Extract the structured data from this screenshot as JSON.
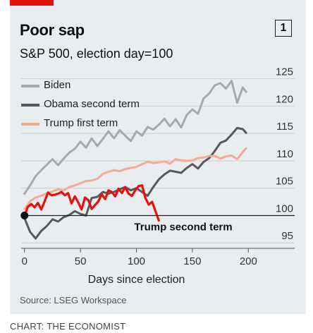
{
  "header": {
    "title": "Poor sap",
    "subtitle": "S&P 500, election day=100",
    "badge": "1",
    "accent_color": "#e3120b"
  },
  "footer": {
    "source": "Source: LSEG Workspace",
    "credit": "CHART: THE ECONOMIST"
  },
  "chart_data": {
    "type": "line",
    "title": "Poor sap",
    "subtitle": "S&P 500, election day=100",
    "xlabel": "Days since election",
    "ylabel": "",
    "xlim": [
      -3,
      208
    ],
    "ylim": [
      94,
      126.5
    ],
    "x_ticks": [
      0,
      50,
      100,
      150,
      200
    ],
    "y_ticks": [
      95,
      100,
      105,
      110,
      115,
      120,
      125
    ],
    "baseline": 100,
    "grid": "horizontal",
    "legend": "top-left",
    "series": [
      {
        "name": "Biden",
        "color": "#a7a9ab",
        "x": [
          0,
          5,
          10,
          15,
          20,
          25,
          30,
          35,
          40,
          45,
          50,
          55,
          60,
          65,
          70,
          75,
          80,
          85,
          90,
          95,
          100,
          105,
          110,
          115,
          120,
          125,
          130,
          135,
          140,
          145,
          150,
          155,
          160,
          165,
          170,
          175,
          180,
          185,
          190,
          195,
          198
        ],
        "y": [
          104.0,
          105.5,
          107.2,
          108.3,
          109.3,
          110.3,
          109.2,
          110.4,
          111.5,
          112.2,
          113.5,
          112.4,
          114.1,
          112.7,
          114.0,
          115.4,
          114.1,
          115.6,
          114.6,
          113.6,
          115.4,
          114.6,
          116.2,
          115.7,
          116.6,
          117.7,
          116.3,
          117.6,
          116.1,
          118.4,
          119.4,
          118.6,
          121.4,
          122.3,
          123.8,
          124.2,
          123.2,
          124.6,
          120.6,
          123.4,
          122.6
        ]
      },
      {
        "name": "Obama second term",
        "color": "#58595b",
        "x": [
          0,
          5,
          10,
          15,
          20,
          25,
          30,
          35,
          40,
          45,
          50,
          55,
          60,
          65,
          70,
          75,
          80,
          85,
          90,
          95,
          100,
          105,
          110,
          115,
          120,
          125,
          130,
          135,
          140,
          145,
          150,
          155,
          160,
          165,
          170,
          175,
          180,
          185,
          190,
          195,
          198
        ],
        "y": [
          99.5,
          97.0,
          95.8,
          97.2,
          98.1,
          99.3,
          98.9,
          99.7,
          100.1,
          100.8,
          100.3,
          100.0,
          103.2,
          103.4,
          104.3,
          104.0,
          104.3,
          104.8,
          105.2,
          104.6,
          105.0,
          104.3,
          103.6,
          105.2,
          106.6,
          107.5,
          108.2,
          108.0,
          107.8,
          108.7,
          109.4,
          108.6,
          109.8,
          110.5,
          111.8,
          113.3,
          113.7,
          114.8,
          116.0,
          115.8,
          115.1
        ]
      },
      {
        "name": "Trump first term",
        "color": "#f4aa94",
        "x": [
          0,
          5,
          10,
          15,
          20,
          25,
          30,
          35,
          40,
          45,
          50,
          55,
          60,
          65,
          70,
          75,
          80,
          85,
          90,
          95,
          100,
          105,
          110,
          115,
          120,
          125,
          130,
          135,
          140,
          145,
          150,
          155,
          160,
          165,
          170,
          175,
          180,
          185,
          190,
          195,
          198
        ],
        "y": [
          101.2,
          102.6,
          103.3,
          103.6,
          104.1,
          104.4,
          104.8,
          104.6,
          105.2,
          105.5,
          105.9,
          106.3,
          106.4,
          106.7,
          107.6,
          108.0,
          108.3,
          108.1,
          108.5,
          108.7,
          108.9,
          109.4,
          109.8,
          109.6,
          109.7,
          109.9,
          109.5,
          110.3,
          110.1,
          110.0,
          110.1,
          110.5,
          110.6,
          110.9,
          110.9,
          110.4,
          110.8,
          111.0,
          110.3,
          111.6,
          112.3
        ]
      },
      {
        "name": "Trump second term",
        "color": "#e3120b",
        "label_position": "below-line",
        "x": [
          0,
          3,
          6,
          9,
          12,
          15,
          18,
          21,
          24,
          27,
          30,
          33,
          36,
          39,
          42,
          45,
          48,
          51,
          54,
          57,
          60,
          63,
          66,
          69,
          72,
          75,
          78,
          81,
          84,
          87,
          90,
          93,
          96,
          99,
          102,
          105,
          108,
          111,
          114,
          117,
          120
        ],
        "y": [
          100.0,
          101.6,
          102.1,
          101.5,
          102.3,
          101.1,
          102.6,
          104.2,
          103.7,
          103.8,
          104.0,
          104.3,
          103.7,
          104.1,
          102.2,
          103.5,
          102.4,
          101.1,
          103.3,
          102.8,
          101.2,
          101.9,
          102.6,
          103.9,
          103.0,
          104.6,
          104.3,
          103.5,
          104.9,
          104.1,
          105.2,
          104.0,
          103.6,
          104.6,
          105.4,
          105.5,
          103.2,
          102.0,
          102.5,
          100.8,
          99.1
        ]
      }
    ]
  }
}
